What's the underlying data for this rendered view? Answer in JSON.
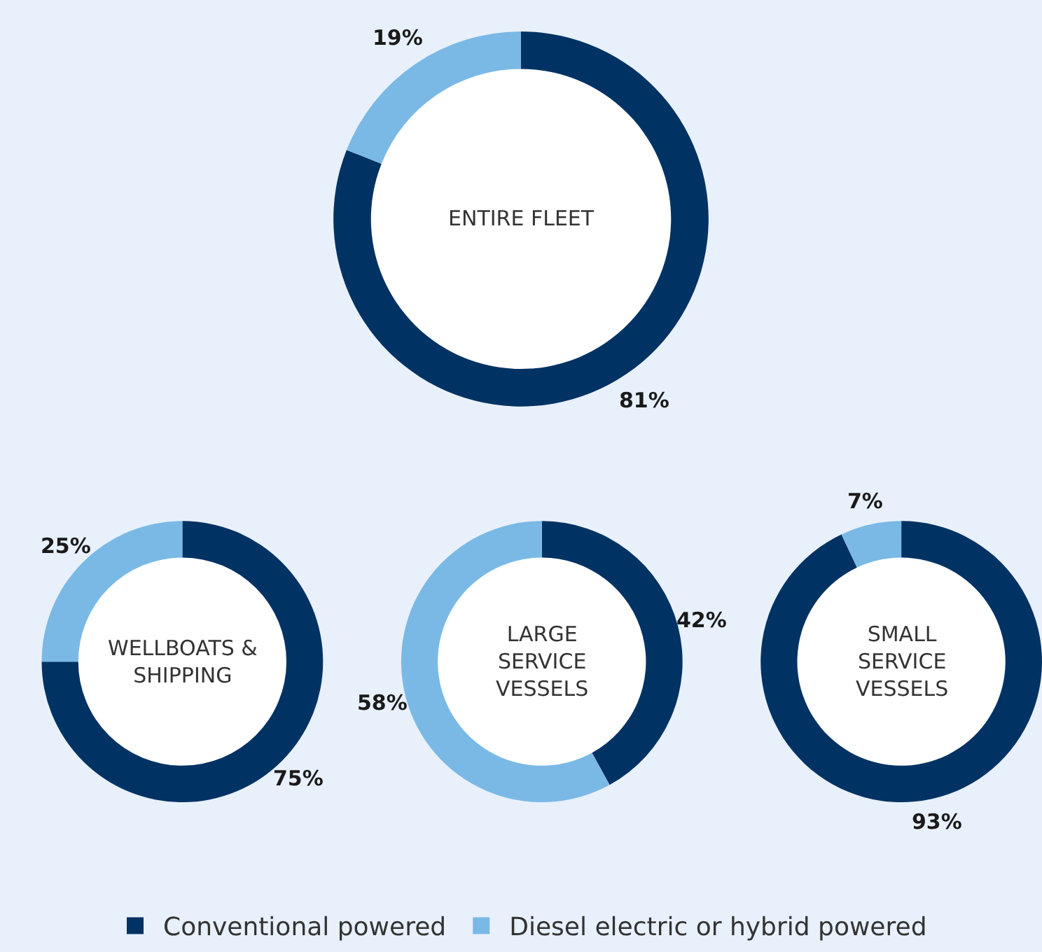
{
  "chart_data": [
    {
      "type": "donut",
      "title": "ENTIRE FLEET",
      "categories": [
        "Conventional powered",
        "Diesel electric or hybrid powered"
      ],
      "values": [
        81,
        19
      ],
      "colors": [
        "#003263",
        "#7ab9e6"
      ],
      "value_labels": [
        "81%",
        "19%"
      ],
      "legend": "bottom"
    },
    {
      "type": "donut",
      "title": "WELLBOATS &\nSHIPPING",
      "categories": [
        null,
        null
      ],
      "values": [
        75,
        25
      ],
      "colors": [
        "#003263",
        "#7ab9e6"
      ],
      "value_labels": [
        "75%",
        "25%"
      ]
    },
    {
      "type": "donut",
      "title": "LARGE\nSERVICE\nVESSELS",
      "categories": [
        null,
        null
      ],
      "values": [
        42,
        58
      ],
      "colors": [
        "#003263",
        "#7ab9e6"
      ],
      "value_labels": [
        "42%",
        "58%"
      ]
    },
    {
      "type": "donut",
      "title": "SMALL\nSERVICE\nVESSELS",
      "categories": [
        null,
        null
      ],
      "values": [
        93,
        7
      ],
      "colors": [
        "#003263",
        "#7ab9e6"
      ],
      "value_labels": [
        "93%",
        "7%"
      ]
    }
  ]
}
